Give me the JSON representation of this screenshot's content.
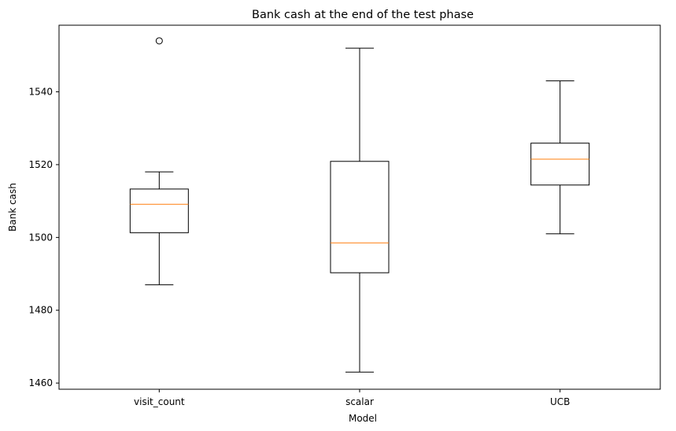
{
  "chart_data": {
    "type": "box",
    "title": "Bank cash at the end of the test phase",
    "xlabel": "Model",
    "ylabel": "Bank cash",
    "ylim": [
      1458.3,
      1558.3
    ],
    "yticks": [
      1460,
      1480,
      1500,
      1520,
      1540
    ],
    "grid": false,
    "categories": [
      "visit_count",
      "scalar",
      "UCB"
    ],
    "boxes": [
      {
        "category": "visit_count",
        "whisker_low": 1487,
        "q1": 1501.3,
        "median": 1509.1,
        "q3": 1513.3,
        "whisker_high": 1518,
        "outliers": [
          1554
        ]
      },
      {
        "category": "scalar",
        "whisker_low": 1463,
        "q1": 1490.3,
        "median": 1498.5,
        "q3": 1520.9,
        "whisker_high": 1552,
        "outliers": []
      },
      {
        "category": "UCB",
        "whisker_low": 1501,
        "q1": 1514.4,
        "median": 1521.5,
        "q3": 1525.9,
        "whisker_high": 1543,
        "outliers": []
      }
    ],
    "colors": {
      "box": "#000000",
      "median": "#ff7f0e"
    }
  }
}
